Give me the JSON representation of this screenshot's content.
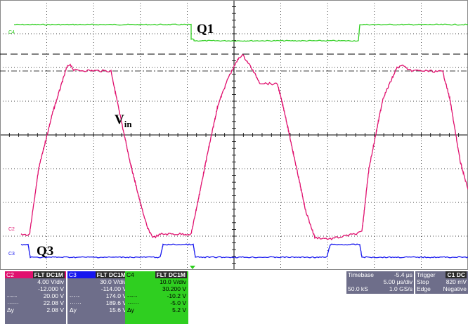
{
  "colors": {
    "ch2": "#e0106e",
    "ch3": "#1616ee",
    "ch4": "#2fcf20",
    "grid": "#000000",
    "panel_bg": "#6e6e8a",
    "panel_dark": "#2a2a2a",
    "background": "#ffffff"
  },
  "annotations": {
    "q1": "Q1",
    "vin_main": "V",
    "vin_sub": "in",
    "q3": "Q3"
  },
  "trace_markers": {
    "c4": "C4",
    "c2": "C2",
    "c3": "C3"
  },
  "channels": [
    {
      "id": "C2",
      "status": "FLT DC1M",
      "scale": "4.00 V/div",
      "offset": "-12.000 V",
      "cursor1_label": "-·-·-",
      "cursor1": "20.00 V",
      "cursor2_label": "······",
      "cursor2": "22.08 V",
      "delta_label": "Δy",
      "delta": "2.08 V"
    },
    {
      "id": "C3",
      "status": "FLT DC1M",
      "scale": "30.0 V/div",
      "offset": "-114.00 V",
      "cursor1_label": "-·-·-",
      "cursor1": "174.0 V",
      "cursor2_label": "······",
      "cursor2": "189.6 V",
      "delta_label": "Δy",
      "delta": "15.6 V"
    },
    {
      "id": "C4",
      "status": "FLT DC1M",
      "scale": "10.0 V/div",
      "offset": "30.200 V",
      "cursor1_label": "-·-·-",
      "cursor1": "-10.2 V",
      "cursor2_label": "······",
      "cursor2": "-5.0 V",
      "delta_label": "Δy",
      "delta": "5.2 V"
    }
  ],
  "timebase": {
    "label": "Timebase",
    "offset": "-5.4 μs",
    "per_div": "5.00 μs/div",
    "samples": "50.0 kS",
    "rate": "1.0 GS/s"
  },
  "trigger": {
    "label": "Trigger",
    "channel": "C1 DC",
    "mode": "Stop",
    "level": "820 mV",
    "type": "Edge",
    "slope": "Negative"
  }
}
